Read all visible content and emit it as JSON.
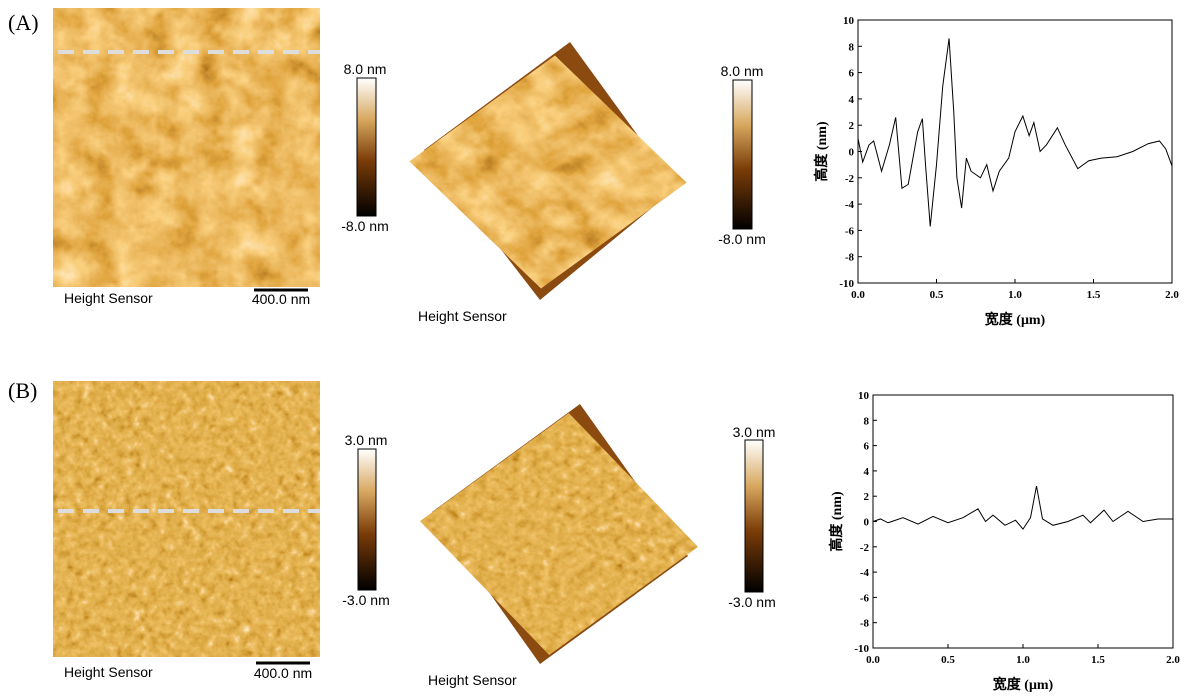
{
  "panels": [
    {
      "label": "(A)",
      "image_caption": "Height Sensor",
      "scale_bar": "400.0 nm",
      "colorbar_max": "8.0 nm",
      "colorbar_min": "-8.0 nm",
      "caption_3d": "Height Sensor",
      "colorbar3d_max": "8.0 nm",
      "colorbar3d_min": "-8.0 nm"
    },
    {
      "label": "(B)",
      "image_caption": "Height Sensor",
      "scale_bar": "400.0 nm",
      "colorbar_max": "3.0 nm",
      "colorbar_min": "-3.0 nm",
      "caption_3d": "Height Sensor",
      "colorbar3d_max": "3.0 nm",
      "colorbar3d_min": "-3.0 nm"
    }
  ],
  "chart_data": [
    {
      "type": "line",
      "xlabel": "宽度 (μm)",
      "ylabel": "高度 (nm)",
      "color": "#000000",
      "x": [
        0,
        0.03,
        0.07,
        0.1,
        0.15,
        0.2,
        0.24,
        0.28,
        0.32,
        0.38,
        0.41,
        0.43,
        0.46,
        0.5,
        0.54,
        0.58,
        0.61,
        0.63,
        0.66,
        0.69,
        0.72,
        0.78,
        0.82,
        0.86,
        0.9,
        0.96,
        1.0,
        1.05,
        1.09,
        1.12,
        1.16,
        1.2,
        1.27,
        1.32,
        1.4,
        1.47,
        1.55,
        1.65,
        1.75,
        1.85,
        1.92,
        1.96,
        2.0
      ],
      "values": [
        1.0,
        -0.8,
        0.5,
        0.8,
        -1.5,
        0.5,
        2.6,
        -2.8,
        -2.5,
        1.5,
        2.5,
        -1,
        -5.7,
        -1,
        5,
        8.6,
        3,
        -2,
        -4.3,
        -0.5,
        -1.5,
        -2,
        -1,
        -3,
        -1.5,
        -0.5,
        1.5,
        2.7,
        1.2,
        2.2,
        0,
        0.5,
        1.8,
        0.5,
        -1.3,
        -0.7,
        -0.5,
        -0.4,
        0,
        0.6,
        0.8,
        0.2,
        -1.1
      ],
      "xlim": [
        0,
        2
      ],
      "ylim": [
        -10,
        10
      ],
      "xticks": [
        {
          "value": 0,
          "label": "0.0"
        },
        {
          "value": 0.5,
          "label": "0.5"
        },
        {
          "value": 1,
          "label": "1.0"
        },
        {
          "value": 1.5,
          "label": "1.5"
        },
        {
          "value": 2,
          "label": "2.0"
        }
      ],
      "yticks": [
        -10,
        -8,
        -6,
        -4,
        -2,
        0,
        2,
        4,
        6,
        8,
        10
      ]
    },
    {
      "type": "line",
      "xlabel": "宽度 (μm)",
      "ylabel": "高度 (nm)",
      "color": "#000000",
      "x": [
        0,
        0.05,
        0.1,
        0.2,
        0.3,
        0.4,
        0.5,
        0.6,
        0.7,
        0.75,
        0.8,
        0.88,
        0.95,
        1.0,
        1.05,
        1.09,
        1.13,
        1.2,
        1.3,
        1.4,
        1.45,
        1.54,
        1.6,
        1.7,
        1.8,
        1.9,
        2.0
      ],
      "values": [
        0,
        0.2,
        -0.1,
        0.3,
        -0.2,
        0.4,
        -0.1,
        0.3,
        1.0,
        0,
        0.5,
        -0.3,
        0.1,
        -0.6,
        0.3,
        2.8,
        0.2,
        -0.3,
        0,
        0.5,
        -0.1,
        0.9,
        0,
        0.8,
        0,
        0.2,
        0.2
      ],
      "xlim": [
        0,
        2
      ],
      "ylim": [
        -10,
        10
      ],
      "xticks": [
        {
          "value": 0,
          "label": "0.0"
        },
        {
          "value": 0.5,
          "label": "0.5"
        },
        {
          "value": 1,
          "label": "1.0"
        },
        {
          "value": 1.5,
          "label": "1.5"
        },
        {
          "value": 2,
          "label": "2.0"
        }
      ],
      "yticks": [
        -10,
        -8,
        -6,
        -4,
        -2,
        0,
        2,
        4,
        6,
        8,
        10
      ]
    }
  ]
}
